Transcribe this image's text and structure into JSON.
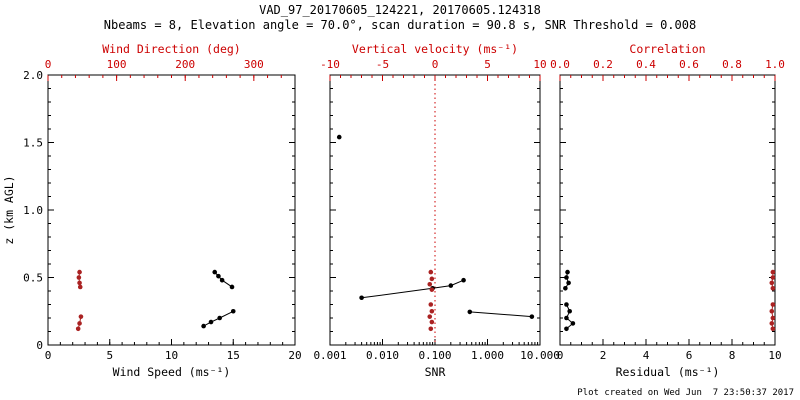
{
  "title": "VAD_97_20170605_124221, 20170605.124318",
  "subtitle": "Nbeams = 8, Elevation angle = 70.0°, scan duration = 90.8 s, SNR Threshold = 0.008",
  "footer": "Plot created on Wed Jun  7 23:50:37 2017",
  "colors": {
    "axis_black": "#000000",
    "axis_red": "#cc0000",
    "points_red": "#aa2222",
    "background": "#ffffff"
  },
  "chart_data": [
    {
      "id": "wind",
      "type": "scatter",
      "bottom_axis": {
        "label": "Wind Speed (ms⁻¹)",
        "lim": [
          0,
          20
        ],
        "ticks": [
          0,
          5,
          10,
          15,
          20
        ],
        "tick_labels": [
          "0",
          "5",
          "10",
          "15",
          "20"
        ],
        "minor_step": 1,
        "scale": "linear",
        "color": "#000000"
      },
      "top_axis": {
        "label": "Wind Direction (deg)",
        "lim": [
          0,
          360
        ],
        "ticks": [
          0,
          100,
          200,
          300
        ],
        "tick_labels": [
          "0",
          "100",
          "200",
          "300"
        ],
        "minor_step": 20,
        "scale": "linear",
        "color": "#cc0000"
      },
      "y_axis": {
        "label": "z (km AGL)",
        "lim": [
          0,
          2
        ],
        "ticks": [
          0,
          0.5,
          1,
          1.5,
          2
        ],
        "tick_labels": [
          "0",
          "0.5",
          "1.0",
          "1.5",
          "2.0"
        ],
        "minor_step": 0.1,
        "show_labels": true
      },
      "series": [
        {
          "name": "wind-speed-lower",
          "axis": "bottom",
          "color": "#000000",
          "connected": true,
          "points": [
            [
              12.6,
              0.14
            ],
            [
              13.2,
              0.17
            ],
            [
              13.9,
              0.2
            ],
            [
              15.0,
              0.25
            ]
          ]
        },
        {
          "name": "wind-speed-upper",
          "axis": "bottom",
          "color": "#000000",
          "connected": true,
          "points": [
            [
              13.5,
              0.54
            ],
            [
              13.8,
              0.51
            ],
            [
              14.1,
              0.48
            ],
            [
              14.9,
              0.43
            ]
          ]
        },
        {
          "name": "wind-direction-lower",
          "axis": "top",
          "color": "#aa2222",
          "connected": true,
          "points": [
            [
              44,
              0.12
            ],
            [
              46,
              0.16
            ],
            [
              48,
              0.21
            ]
          ]
        },
        {
          "name": "wind-direction-upper",
          "axis": "top",
          "color": "#aa2222",
          "connected": true,
          "points": [
            [
              47,
              0.43
            ],
            [
              46,
              0.46
            ],
            [
              45,
              0.5
            ],
            [
              46,
              0.54
            ]
          ]
        }
      ]
    },
    {
      "id": "snr",
      "type": "scatter",
      "bottom_axis": {
        "label": "SNR",
        "lim": [
          0.001,
          10
        ],
        "ticks": [
          0.001,
          0.01,
          0.1,
          1,
          10
        ],
        "tick_labels": [
          "0.001",
          "0.010",
          "0.100",
          "1.000",
          "10.000"
        ],
        "scale": "log",
        "color": "#000000"
      },
      "top_axis": {
        "label": "Vertical velocity (ms⁻¹)",
        "lim": [
          -10,
          10
        ],
        "ticks": [
          -10,
          -5,
          0,
          5,
          10
        ],
        "tick_labels": [
          "-10",
          "-5",
          "0",
          "5",
          "10"
        ],
        "minor_step": 1,
        "scale": "linear",
        "color": "#cc0000"
      },
      "y_axis": {
        "lim": [
          0,
          2
        ],
        "ticks": [
          0,
          0.5,
          1,
          1.5,
          2
        ],
        "minor_step": 0.1,
        "show_labels": false
      },
      "vlines": [
        {
          "x": 0.1,
          "color": "#cc0000",
          "style": "dotted"
        }
      ],
      "series": [
        {
          "name": "snr-isolated-point",
          "axis": "bottom",
          "color": "#000000",
          "connected": false,
          "points": [
            [
              0.0015,
              1.54
            ]
          ]
        },
        {
          "name": "snr-upper-line",
          "axis": "bottom",
          "color": "#000000",
          "connected": true,
          "points": [
            [
              0.004,
              0.35
            ],
            [
              0.09,
              0.42
            ],
            [
              0.2,
              0.44
            ],
            [
              0.35,
              0.48
            ]
          ]
        },
        {
          "name": "snr-lower-line",
          "axis": "bottom",
          "color": "#000000",
          "connected": true,
          "points": [
            [
              0.46,
              0.245
            ],
            [
              7.0,
              0.21
            ]
          ]
        },
        {
          "name": "vertical-velocity-lower",
          "axis": "top",
          "color": "#aa2222",
          "connected": false,
          "points": [
            [
              -0.4,
              0.12
            ],
            [
              -0.3,
              0.17
            ],
            [
              -0.5,
              0.21
            ],
            [
              -0.3,
              0.25
            ],
            [
              -0.4,
              0.3
            ]
          ]
        },
        {
          "name": "vertical-velocity-upper",
          "axis": "top",
          "color": "#aa2222",
          "connected": false,
          "points": [
            [
              -0.3,
              0.41
            ],
            [
              -0.5,
              0.45
            ],
            [
              -0.3,
              0.49
            ],
            [
              -0.4,
              0.54
            ]
          ]
        }
      ]
    },
    {
      "id": "residual",
      "type": "scatter",
      "bottom_axis": {
        "label": "Residual (ms⁻¹)",
        "lim": [
          0,
          10
        ],
        "ticks": [
          0,
          2,
          4,
          6,
          8,
          10
        ],
        "tick_labels": [
          "0",
          "2",
          "4",
          "6",
          "8",
          "10"
        ],
        "minor_step": 0.5,
        "scale": "linear",
        "color": "#000000"
      },
      "top_axis": {
        "label": "Correlation",
        "lim": [
          0,
          1
        ],
        "ticks": [
          0,
          0.2,
          0.4,
          0.6,
          0.8,
          1
        ],
        "tick_labels": [
          "0.0",
          "0.2",
          "0.4",
          "0.6",
          "0.8",
          "1.0"
        ],
        "minor_step": 0.05,
        "scale": "linear",
        "color": "#cc0000"
      },
      "y_axis": {
        "lim": [
          0,
          2
        ],
        "ticks": [
          0,
          0.5,
          1,
          1.5,
          2
        ],
        "minor_step": 0.1,
        "show_labels": false
      },
      "series": [
        {
          "name": "residual-lower",
          "axis": "bottom",
          "color": "#000000",
          "connected": true,
          "points": [
            [
              0.3,
              0.12
            ],
            [
              0.6,
              0.16
            ],
            [
              0.3,
              0.2
            ],
            [
              0.45,
              0.25
            ],
            [
              0.3,
              0.3
            ]
          ]
        },
        {
          "name": "residual-upper",
          "axis": "bottom",
          "color": "#000000",
          "connected": true,
          "points": [
            [
              0.25,
              0.42
            ],
            [
              0.4,
              0.46
            ],
            [
              0.3,
              0.5
            ],
            [
              0.35,
              0.54
            ]
          ]
        },
        {
          "name": "correlation-lower",
          "axis": "top",
          "color": "#aa2222",
          "connected": true,
          "points": [
            [
              0.99,
              0.12
            ],
            [
              0.985,
              0.16
            ],
            [
              0.99,
              0.2
            ],
            [
              0.985,
              0.25
            ],
            [
              0.99,
              0.3
            ]
          ]
        },
        {
          "name": "correlation-upper",
          "axis": "top",
          "color": "#aa2222",
          "connected": true,
          "points": [
            [
              0.99,
              0.42
            ],
            [
              0.985,
              0.46
            ],
            [
              0.99,
              0.5
            ],
            [
              0.99,
              0.54
            ]
          ]
        }
      ]
    }
  ]
}
